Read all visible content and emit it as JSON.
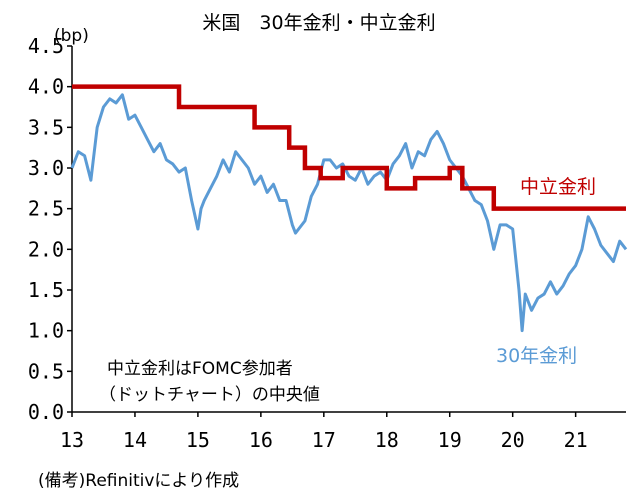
{
  "chart_data": {
    "type": "line",
    "title": "米国　30年金利・中立金利",
    "ylabel": "(bp)",
    "ylim": [
      0,
      4.5
    ],
    "y_ticks": [
      "0.0",
      "0.5",
      "1.0",
      "1.5",
      "2.0",
      "2.5",
      "3.0",
      "3.5",
      "4.0",
      "4.5"
    ],
    "xlim": [
      13,
      21.8
    ],
    "x_ticks": [
      "13",
      "14",
      "15",
      "16",
      "17",
      "18",
      "19",
      "20",
      "21"
    ],
    "grid": false,
    "note_line1": "中立金利はFOMC参加者",
    "note_line2": "（ドットチャート）の中央値",
    "source": "(備考)Refinitivにより作成",
    "series": [
      {
        "name": "中立金利",
        "color": "#c00000",
        "step": true,
        "x": [
          13.0,
          14.7,
          15.9,
          16.45,
          16.7,
          16.95,
          17.3,
          18.0,
          18.45,
          19.0,
          19.2,
          19.7,
          21.8
        ],
        "values": [
          4.0,
          3.75,
          3.5,
          3.25,
          3.0,
          2.875,
          3.0,
          2.75,
          2.875,
          3.0,
          2.75,
          2.5,
          2.5
        ]
      },
      {
        "name": "30年金利",
        "color": "#5b9bd5",
        "x": [
          13.0,
          13.1,
          13.2,
          13.3,
          13.4,
          13.5,
          13.6,
          13.7,
          13.8,
          13.9,
          14.0,
          14.1,
          14.2,
          14.3,
          14.4,
          14.5,
          14.6,
          14.7,
          14.8,
          14.9,
          15.0,
          15.05,
          15.1,
          15.2,
          15.3,
          15.4,
          15.5,
          15.6,
          15.7,
          15.8,
          15.9,
          16.0,
          16.1,
          16.2,
          16.3,
          16.4,
          16.5,
          16.55,
          16.6,
          16.7,
          16.8,
          16.9,
          17.0,
          17.1,
          17.2,
          17.3,
          17.4,
          17.5,
          17.6,
          17.7,
          17.8,
          17.9,
          18.0,
          18.1,
          18.2,
          18.3,
          18.4,
          18.5,
          18.6,
          18.7,
          18.8,
          18.9,
          19.0,
          19.1,
          19.2,
          19.3,
          19.4,
          19.5,
          19.6,
          19.7,
          19.8,
          19.9,
          20.0,
          20.1,
          20.15,
          20.2,
          20.3,
          20.4,
          20.5,
          20.6,
          20.7,
          20.8,
          20.9,
          21.0,
          21.1,
          21.2,
          21.3,
          21.4,
          21.5,
          21.6,
          21.7,
          21.8
        ],
        "values": [
          3.0,
          3.2,
          3.15,
          2.85,
          3.5,
          3.75,
          3.85,
          3.8,
          3.9,
          3.6,
          3.65,
          3.5,
          3.35,
          3.2,
          3.3,
          3.1,
          3.05,
          2.95,
          3.0,
          2.6,
          2.25,
          2.5,
          2.6,
          2.75,
          2.9,
          3.1,
          2.95,
          3.2,
          3.1,
          3.0,
          2.8,
          2.9,
          2.7,
          2.8,
          2.6,
          2.6,
          2.3,
          2.2,
          2.25,
          2.35,
          2.65,
          2.8,
          3.1,
          3.1,
          3.0,
          3.05,
          2.9,
          2.85,
          3.0,
          2.8,
          2.9,
          2.95,
          2.85,
          3.05,
          3.15,
          3.3,
          3.0,
          3.2,
          3.15,
          3.35,
          3.45,
          3.3,
          3.1,
          3.0,
          2.9,
          2.75,
          2.6,
          2.55,
          2.35,
          2.0,
          2.3,
          2.3,
          2.25,
          1.5,
          1.0,
          1.45,
          1.25,
          1.4,
          1.45,
          1.6,
          1.45,
          1.55,
          1.7,
          1.8,
          2.0,
          2.4,
          2.25,
          2.05,
          1.95,
          1.85,
          2.1,
          2.0
        ]
      }
    ]
  }
}
